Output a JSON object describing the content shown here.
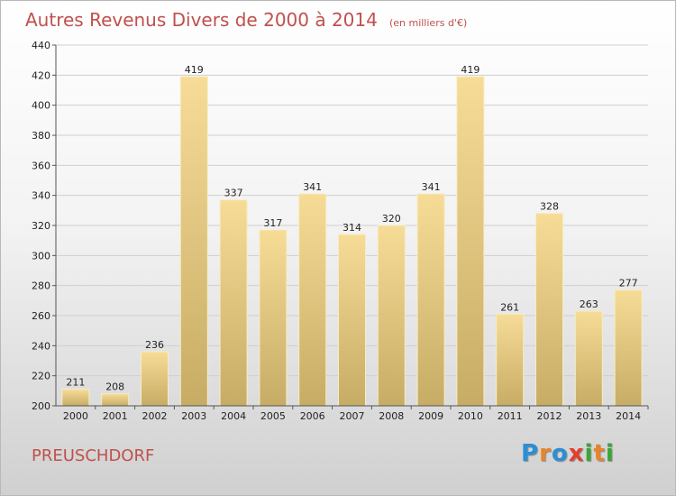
{
  "header": {
    "title": "Autres Revenus Divers de 2000 à 2014",
    "subtitle": "(en milliers d'€)"
  },
  "footer": {
    "commune": "PREUSCHDORF",
    "logo": [
      "P",
      "r",
      "o",
      "x",
      "i",
      "t",
      "i"
    ]
  },
  "colors": {
    "title": "#c0504d",
    "bar_top": "#f6dc96",
    "bar_bottom": "#c7ac66",
    "logo": [
      "#2a8fd6",
      "#e6852a",
      "#2a8fd6",
      "#e23f2c",
      "#3aa63a",
      "#e6852a",
      "#3aa63a"
    ]
  },
  "chart_data": {
    "type": "bar",
    "categories": [
      "2000",
      "2001",
      "2002",
      "2003",
      "2004",
      "2005",
      "2006",
      "2007",
      "2008",
      "2009",
      "2010",
      "2011",
      "2012",
      "2013",
      "2014"
    ],
    "values": [
      211,
      208,
      236,
      419,
      337,
      317,
      341,
      314,
      320,
      341,
      419,
      261,
      328,
      263,
      277
    ],
    "ylim": [
      200,
      440
    ],
    "yticks": [
      200,
      220,
      240,
      260,
      280,
      300,
      320,
      340,
      360,
      380,
      400,
      420,
      440
    ],
    "grid": true
  }
}
